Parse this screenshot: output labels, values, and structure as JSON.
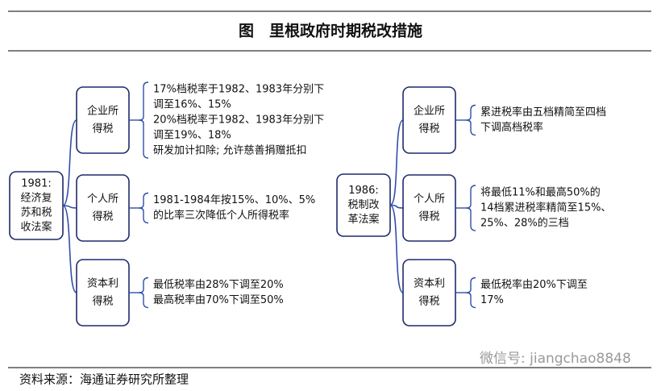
{
  "header": {
    "title": "图　里根政府时期税改措施"
  },
  "trees": [
    {
      "root": [
        "1981:",
        "经济复",
        "苏和税",
        "收法案"
      ],
      "branches": [
        {
          "label": [
            "企业所",
            "得税"
          ],
          "notes": [
            "17%档税率于1982、1983年分别下",
            "调至16%、15%",
            "20%档税率于1982、1983年分别下",
            "调至19%、18%",
            "研发加计扣除; 允许慈善捐赠抵扣"
          ]
        },
        {
          "label": [
            "个人所",
            "得税"
          ],
          "notes": [
            "1981-1984年按15%、10%、5%",
            "的比率三次降低个人所得税率"
          ]
        },
        {
          "label": [
            "资本利",
            "得税"
          ],
          "notes": [
            "最低税率由28%下调至20%",
            "最高税率由70%下调至50%"
          ]
        }
      ]
    },
    {
      "root": [
        "1986:",
        "税制改",
        "革法案"
      ],
      "branches": [
        {
          "label": [
            "企业所",
            "得税"
          ],
          "notes": [
            "累进税率由五档精简至四档",
            "下调高档税率"
          ]
        },
        {
          "label": [
            "个人所",
            "得税"
          ],
          "notes": [
            "将最低11%和最高50%的",
            "14档累进税率精简至15%、",
            "25%、28%的三档"
          ]
        },
        {
          "label": [
            "资本利",
            "得税"
          ],
          "notes": [
            "最低税率由20%下调至",
            "17%"
          ]
        }
      ]
    }
  ],
  "watermark": "微信号: jiangchao8848",
  "footer": {
    "source": "资料来源：海通证券研究所整理"
  }
}
